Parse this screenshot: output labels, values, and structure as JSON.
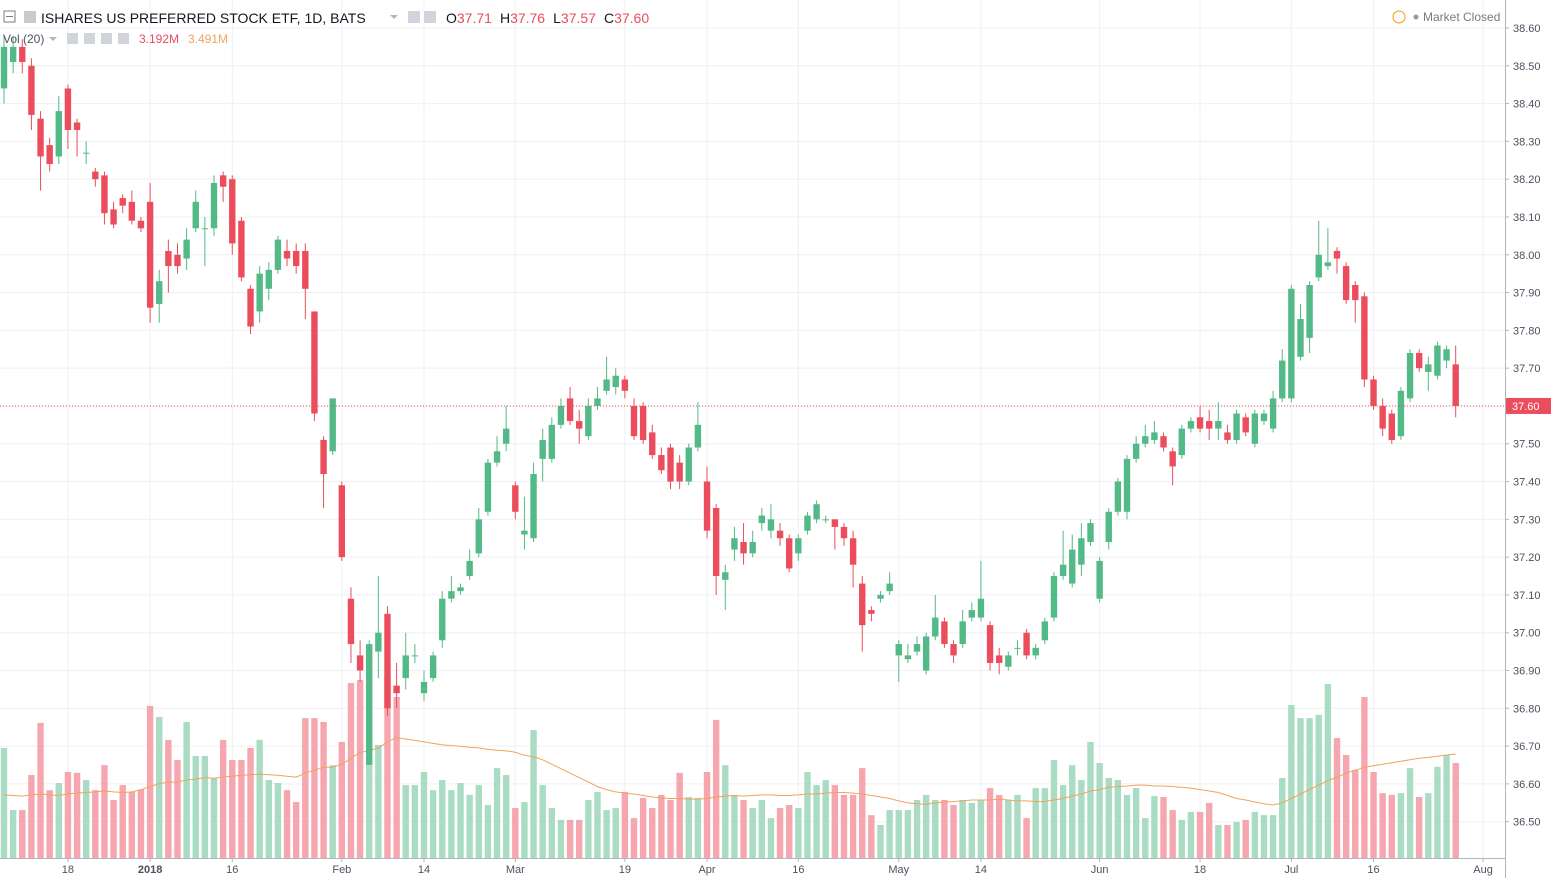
{
  "chart_data": {
    "type": "candlestick",
    "title": "ISHARES US PREFERRED STOCK ETF, 1D, BATS",
    "ohlc_prefixes": [
      "O",
      "H",
      "L",
      "C"
    ],
    "ohlc_values": [
      "37.71",
      "37.76",
      "37.57",
      "37.60"
    ],
    "volume_legend": {
      "name": "Vol (20)",
      "values": [
        "3.192M",
        "3.491M"
      ]
    },
    "status": "Market Closed",
    "up_color": "#53b987",
    "down_color": "#eb4d5c",
    "up_volume_color": "#a9dcc3",
    "down_volume_color": "#f5a6ae",
    "ma_color": "#f0a35e",
    "last_price": {
      "value": 37.6,
      "label": "37.60"
    },
    "xlim": [
      -0.44,
      164.4
    ],
    "xticks": [
      {
        "value": 7,
        "label": "18"
      },
      {
        "value": 16,
        "label": "2018"
      },
      {
        "value": 25,
        "label": "16"
      },
      {
        "value": 37,
        "label": "Feb"
      },
      {
        "value": 46,
        "label": "14"
      },
      {
        "value": 56,
        "label": "Mar"
      },
      {
        "value": 68,
        "label": "19"
      },
      {
        "value": 77,
        "label": "Apr"
      },
      {
        "value": 87,
        "label": "16"
      },
      {
        "value": 98,
        "label": "May"
      },
      {
        "value": 107,
        "label": "14"
      },
      {
        "value": 120,
        "label": "Jun"
      },
      {
        "value": 131,
        "label": "18"
      },
      {
        "value": 141,
        "label": "Jul"
      },
      {
        "value": 150,
        "label": "16"
      },
      {
        "value": 162,
        "label": "Aug"
      }
    ],
    "ylim": [
      36.404,
      38.674
    ],
    "yticks": [
      {
        "value": 36.5,
        "label": "36.50"
      },
      {
        "value": 36.6,
        "label": "36.60"
      },
      {
        "value": 36.7,
        "label": "36.70"
      },
      {
        "value": 36.8,
        "label": "36.80"
      },
      {
        "value": 36.9,
        "label": "36.90"
      },
      {
        "value": 37.0,
        "label": "37.00"
      },
      {
        "value": 37.1,
        "label": "37.10"
      },
      {
        "value": 37.2,
        "label": "37.20"
      },
      {
        "value": 37.3,
        "label": "37.30"
      },
      {
        "value": 37.4,
        "label": "37.40"
      },
      {
        "value": 37.5,
        "label": "37.50"
      },
      {
        "value": 37.6,
        "label": "37.60"
      },
      {
        "value": 37.7,
        "label": "37.70"
      },
      {
        "value": 37.8,
        "label": "37.80"
      },
      {
        "value": 37.9,
        "label": "37.90"
      },
      {
        "value": 38.0,
        "label": "38.00"
      },
      {
        "value": 38.1,
        "label": "38.10"
      },
      {
        "value": 38.2,
        "label": "38.20"
      },
      {
        "value": 38.3,
        "label": "38.30"
      },
      {
        "value": 38.4,
        "label": "38.40"
      },
      {
        "value": 38.5,
        "label": "38.50"
      },
      {
        "value": 38.6,
        "label": "38.60"
      }
    ],
    "volume_ylim": [
      0,
      28.83
    ],
    "grid": true,
    "open": [
      38.44,
      38.51,
      38.55,
      38.5,
      38.36,
      38.29,
      38.26,
      38.44,
      38.35,
      38.27,
      38.22,
      38.21,
      38.12,
      38.15,
      38.14,
      38.09,
      38.14,
      37.87,
      38.01,
      38.0,
      37.99,
      38.07,
      38.07,
      38.07,
      38.21,
      38.2,
      38.09,
      37.91,
      37.85,
      37.91,
      37.96,
      38.01,
      38.01,
      38.01,
      37.85,
      37.51,
      37.48,
      37.39,
      37.09,
      36.94,
      36.65,
      36.95,
      37.05,
      36.86,
      36.88,
      36.94,
      36.84,
      36.88,
      36.98,
      37.09,
      37.11,
      37.15,
      37.21,
      37.32,
      37.45,
      37.5,
      37.39,
      37.26,
      37.25,
      37.46,
      37.46,
      37.55,
      37.62,
      37.56,
      37.52,
      37.6,
      37.64,
      37.65,
      37.67,
      37.6,
      37.6,
      37.53,
      37.47,
      37.49,
      37.45,
      37.4,
      37.49,
      37.4,
      37.33,
      37.14,
      37.22,
      37.24,
      37.21,
      37.29,
      37.27,
      37.27,
      37.25,
      37.21,
      37.27,
      37.3,
      37.3,
      37.3,
      37.28,
      37.25,
      37.13,
      37.06,
      37.09,
      37.11,
      36.94,
      36.93,
      36.95,
      36.9,
      36.99,
      37.03,
      36.97,
      36.97,
      37.04,
      37.04,
      37.02,
      36.94,
      36.91,
      36.96,
      37.0,
      36.94,
      36.98,
      37.04,
      37.15,
      37.13,
      37.18,
      37.24,
      37.09,
      37.24,
      37.32,
      37.32,
      37.46,
      37.5,
      37.51,
      37.52,
      37.48,
      37.47,
      37.54,
      37.57,
      37.56,
      37.54,
      37.53,
      37.51,
      37.57,
      37.5,
      37.56,
      37.54,
      37.62,
      37.62,
      37.73,
      37.78,
      37.94,
      37.97,
      38.01,
      37.97,
      37.92,
      37.89,
      37.67,
      37.6,
      37.58,
      37.52,
      37.62,
      37.74,
      37.69,
      37.68,
      37.72,
      37.71
    ],
    "high": [
      38.58,
      38.58,
      38.57,
      38.52,
      38.38,
      38.31,
      38.42,
      38.45,
      38.36,
      38.3,
      38.23,
      38.22,
      38.14,
      38.16,
      38.17,
      38.1,
      38.19,
      37.96,
      38.04,
      38.03,
      38.07,
      38.17,
      38.1,
      38.21,
      38.22,
      38.21,
      38.1,
      37.92,
      37.97,
      37.98,
      38.05,
      38.04,
      38.03,
      38.03,
      37.85,
      37.52,
      37.62,
      37.4,
      37.12,
      36.98,
      36.98,
      37.15,
      37.07,
      36.92,
      37.0,
      36.97,
      36.9,
      36.95,
      37.11,
      37.15,
      37.13,
      37.22,
      37.33,
      37.46,
      37.52,
      37.6,
      37.4,
      37.36,
      37.45,
      37.54,
      37.57,
      37.62,
      37.65,
      37.59,
      37.62,
      37.65,
      37.73,
      37.7,
      37.68,
      37.62,
      37.61,
      37.55,
      37.49,
      37.5,
      37.47,
      37.5,
      37.61,
      37.44,
      37.34,
      37.18,
      37.28,
      37.29,
      37.27,
      37.33,
      37.34,
      37.29,
      37.26,
      37.26,
      37.32,
      37.35,
      37.31,
      37.3,
      37.29,
      37.27,
      37.15,
      37.07,
      37.11,
      37.16,
      36.98,
      36.97,
      36.99,
      37.0,
      37.1,
      37.04,
      36.98,
      37.06,
      37.08,
      37.19,
      37.03,
      36.96,
      36.95,
      36.98,
      37.01,
      36.97,
      37.04,
      37.16,
      37.27,
      37.26,
      37.29,
      37.3,
      37.2,
      37.33,
      37.41,
      37.47,
      37.52,
      37.55,
      37.56,
      37.53,
      37.49,
      37.55,
      37.57,
      37.6,
      37.59,
      37.61,
      37.55,
      37.59,
      37.58,
      37.59,
      37.59,
      37.64,
      37.75,
      37.92,
      37.87,
      37.93,
      38.09,
      38.07,
      38.02,
      37.98,
      37.93,
      37.9,
      37.68,
      37.62,
      37.59,
      37.65,
      37.75,
      37.75,
      37.73,
      37.77,
      37.76,
      37.76
    ],
    "low": [
      38.4,
      38.48,
      38.48,
      38.33,
      38.17,
      38.22,
      38.24,
      38.28,
      38.26,
      38.24,
      38.18,
      38.08,
      38.07,
      38.11,
      38.08,
      38.06,
      37.82,
      37.82,
      37.9,
      37.95,
      37.96,
      38.06,
      37.97,
      38.05,
      38.14,
      38.0,
      37.93,
      37.79,
      37.82,
      37.88,
      37.95,
      37.97,
      37.95,
      37.83,
      37.56,
      37.33,
      37.47,
      37.19,
      36.92,
      36.87,
      36.65,
      36.88,
      36.78,
      36.8,
      36.85,
      36.92,
      36.82,
      36.87,
      36.96,
      37.08,
      37.1,
      37.14,
      37.2,
      37.31,
      37.44,
      37.48,
      37.3,
      37.22,
      37.24,
      37.4,
      37.45,
      37.54,
      37.55,
      37.5,
      37.51,
      37.59,
      37.63,
      37.63,
      37.62,
      37.51,
      37.5,
      37.46,
      37.42,
      37.38,
      37.38,
      37.39,
      37.48,
      37.25,
      37.1,
      37.06,
      37.19,
      37.18,
      37.2,
      37.27,
      37.25,
      37.23,
      37.16,
      37.19,
      37.26,
      37.29,
      37.29,
      37.22,
      37.23,
      37.12,
      36.95,
      37.03,
      37.08,
      37.1,
      36.87,
      36.92,
      36.94,
      36.89,
      36.98,
      36.96,
      36.92,
      36.96,
      37.03,
      37.03,
      36.9,
      36.89,
      36.9,
      36.94,
      36.93,
      36.93,
      36.97,
      37.03,
      37.14,
      37.12,
      37.15,
      37.23,
      37.08,
      37.22,
      37.31,
      37.3,
      37.45,
      37.49,
      37.5,
      37.48,
      37.39,
      37.46,
      37.53,
      37.53,
      37.51,
      37.51,
      37.5,
      37.5,
      37.52,
      37.49,
      37.55,
      37.53,
      37.61,
      37.61,
      37.72,
      37.74,
      37.93,
      37.96,
      37.95,
      37.87,
      37.82,
      37.65,
      37.59,
      37.52,
      37.5,
      37.51,
      37.61,
      37.69,
      37.64,
      37.67,
      37.7,
      37.57
    ],
    "close": [
      38.55,
      38.55,
      38.51,
      38.37,
      38.26,
      38.24,
      38.38,
      38.33,
      38.33,
      38.27,
      38.2,
      38.11,
      38.08,
      38.13,
      38.09,
      38.07,
      37.86,
      37.93,
      37.97,
      37.97,
      38.04,
      38.14,
      38.07,
      38.19,
      38.18,
      38.03,
      37.94,
      37.81,
      37.95,
      37.96,
      38.04,
      37.99,
      37.97,
      37.91,
      37.58,
      37.42,
      37.62,
      37.2,
      36.97,
      36.9,
      36.97,
      37.0,
      36.8,
      36.84,
      36.94,
      36.94,
      36.87,
      36.94,
      37.09,
      37.11,
      37.12,
      37.19,
      37.3,
      37.45,
      37.48,
      37.54,
      37.32,
      37.27,
      37.42,
      37.51,
      37.55,
      37.6,
      37.56,
      37.54,
      37.6,
      37.62,
      37.67,
      37.68,
      37.64,
      37.52,
      37.51,
      37.47,
      37.43,
      37.4,
      37.4,
      37.49,
      37.55,
      37.27,
      37.15,
      37.16,
      37.25,
      37.21,
      37.24,
      37.31,
      37.3,
      37.25,
      37.17,
      37.25,
      37.31,
      37.34,
      37.3,
      37.28,
      37.25,
      37.18,
      37.02,
      37.05,
      37.1,
      37.13,
      36.97,
      36.94,
      36.97,
      36.99,
      37.04,
      36.97,
      36.94,
      37.03,
      37.06,
      37.09,
      36.92,
      36.92,
      36.94,
      36.96,
      36.94,
      36.96,
      37.03,
      37.15,
      37.18,
      37.22,
      37.25,
      37.29,
      37.19,
      37.32,
      37.4,
      37.46,
      37.5,
      37.52,
      37.53,
      37.49,
      37.44,
      37.54,
      37.56,
      37.54,
      37.54,
      37.56,
      37.51,
      37.58,
      37.53,
      37.58,
      37.58,
      37.62,
      37.72,
      37.91,
      37.83,
      37.92,
      38.0,
      37.98,
      37.99,
      37.88,
      37.88,
      37.67,
      37.6,
      37.54,
      37.51,
      37.64,
      37.74,
      37.7,
      37.71,
      37.76,
      37.75,
      37.6
    ],
    "volume": [
      3.7,
      1.61,
      1.61,
      2.79,
      4.54,
      2.28,
      2.52,
      2.89,
      2.86,
      2.62,
      2.28,
      3.12,
      1.95,
      2.45,
      2.22,
      2.3,
      5.11,
      4.74,
      3.97,
      3.29,
      4.57,
      3.43,
      3.43,
      2.69,
      3.97,
      3.29,
      3.29,
      3.7,
      3.97,
      2.62,
      2.52,
      2.28,
      1.88,
      4.7,
      4.7,
      4.57,
      3.12,
      3.9,
      5.88,
      5.98,
      3.12,
      3.8,
      6.12,
      5.41,
      2.45,
      2.45,
      2.89,
      2.28,
      2.62,
      2.28,
      2.52,
      2.12,
      2.45,
      1.78,
      3.02,
      2.79,
      1.68,
      1.88,
      4.3,
      2.45,
      1.68,
      1.28,
      1.28,
      1.28,
      1.95,
      2.22,
      1.61,
      1.68,
      2.22,
      1.34,
      2.02,
      1.68,
      2.12,
      1.95,
      2.86,
      2.05,
      2.02,
      2.89,
      4.64,
      3.12,
      2.12,
      1.95,
      1.68,
      1.95,
      1.34,
      1.68,
      1.78,
      1.68,
      2.89,
      2.45,
      2.62,
      2.45,
      2.12,
      2.12,
      3.02,
      1.44,
      1.11,
      1.61,
      1.61,
      1.61,
      1.95,
      2.12,
      1.95,
      1.95,
      1.78,
      1.95,
      1.85,
      1.95,
      2.35,
      2.12,
      1.95,
      2.12,
      1.34,
      2.35,
      2.35,
      3.29,
      2.45,
      3.12,
      2.62,
      3.9,
      3.19,
      2.69,
      2.62,
      2.12,
      2.35,
      1.34,
      2.08,
      2.05,
      1.61,
      1.28,
      1.55,
      1.55,
      1.85,
      1.11,
      1.11,
      1.21,
      1.28,
      1.55,
      1.44,
      1.44,
      2.69,
      5.14,
      4.7,
      4.7,
      4.81,
      5.85,
      4.03,
      3.46,
      2.96,
      5.41,
      2.89,
      2.18,
      2.12,
      2.18,
      3.02,
      2.05,
      2.18,
      3.06,
      3.46,
      3.192
    ],
    "volume_ma": [
      2.12,
      2.1,
      2.08,
      2.12,
      2.15,
      2.12,
      2.1,
      2.15,
      2.18,
      2.2,
      2.22,
      2.25,
      2.22,
      2.2,
      2.22,
      2.3,
      2.4,
      2.5,
      2.55,
      2.55,
      2.62,
      2.65,
      2.7,
      2.68,
      2.72,
      2.75,
      2.78,
      2.8,
      2.82,
      2.8,
      2.78,
      2.75,
      2.72,
      2.85,
      2.95,
      3.05,
      3.05,
      3.15,
      3.35,
      3.55,
      3.6,
      3.7,
      3.9,
      4.05,
      4.0,
      3.95,
      3.9,
      3.85,
      3.8,
      3.78,
      3.75,
      3.72,
      3.7,
      3.65,
      3.62,
      3.6,
      3.55,
      3.45,
      3.4,
      3.3,
      3.15,
      3.0,
      2.85,
      2.7,
      2.55,
      2.4,
      2.3,
      2.22,
      2.18,
      2.15,
      2.1,
      2.05,
      2.02,
      2.0,
      2.0,
      1.98,
      1.98,
      2.0,
      2.05,
      2.08,
      2.1,
      2.08,
      2.1,
      2.12,
      2.12,
      2.1,
      2.1,
      2.12,
      2.15,
      2.15,
      2.18,
      2.2,
      2.2,
      2.18,
      2.15,
      2.1,
      2.05,
      2.0,
      1.92,
      1.85,
      1.82,
      1.8,
      1.85,
      1.88,
      1.9,
      1.92,
      1.95,
      1.95,
      1.95,
      1.98,
      1.95,
      1.92,
      1.92,
      1.9,
      1.9,
      1.95,
      2.0,
      2.08,
      2.15,
      2.25,
      2.3,
      2.38,
      2.4,
      2.42,
      2.45,
      2.45,
      2.42,
      2.42,
      2.4,
      2.38,
      2.35,
      2.3,
      2.25,
      2.2,
      2.1,
      2.0,
      1.95,
      1.88,
      1.82,
      1.78,
      1.85,
      2.0,
      2.15,
      2.3,
      2.45,
      2.6,
      2.72,
      2.85,
      2.95,
      3.05,
      3.1,
      3.15,
      3.2,
      3.25,
      3.3,
      3.35,
      3.38,
      3.42,
      3.46,
      3.491
    ]
  }
}
